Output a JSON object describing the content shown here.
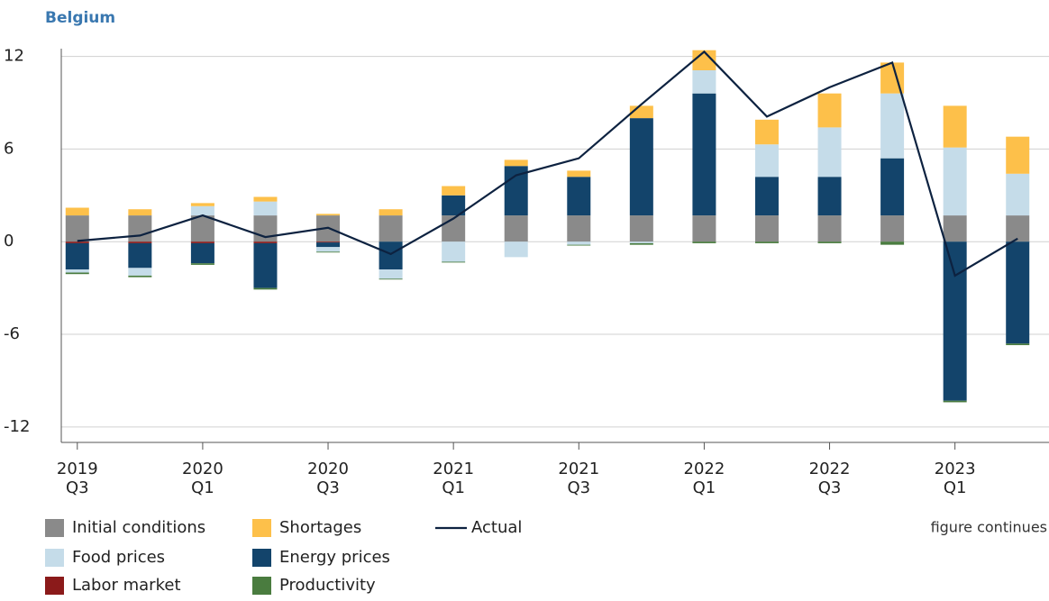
{
  "chart_data": {
    "type": "bar",
    "stacked": true,
    "title": "Belgium",
    "note": "figure continues",
    "categories": [
      "2019 Q3",
      null,
      "2020 Q1",
      null,
      "2020 Q3",
      null,
      "2021 Q1",
      null,
      "2021 Q3",
      null,
      "2022 Q1",
      null,
      "2022 Q3",
      null,
      "2023 Q1",
      null
    ],
    "series": [
      {
        "name": "Initial conditions",
        "color": "#8a8a8a",
        "values": [
          1.7,
          1.7,
          1.7,
          1.7,
          1.7,
          1.7,
          1.7,
          1.7,
          1.7,
          1.7,
          1.7,
          1.7,
          1.7,
          1.7,
          1.7,
          1.7
        ]
      },
      {
        "name": "Labor market",
        "color": "#8b1a1a",
        "values": [
          -0.1,
          -0.1,
          -0.1,
          -0.1,
          -0.05,
          0,
          0,
          0,
          0,
          0,
          0,
          0,
          0,
          0,
          0,
          0
        ]
      },
      {
        "name": "Energy prices",
        "color": "#13446b",
        "values": [
          -1.7,
          -1.6,
          -1.3,
          -2.9,
          -0.3,
          -1.8,
          1.3,
          3.2,
          2.5,
          6.3,
          7.9,
          2.5,
          2.5,
          3.7,
          -10.3,
          -6.6
        ]
      },
      {
        "name": "Food prices",
        "color": "#c5dce9",
        "values": [
          -0.2,
          -0.5,
          0.6,
          0.9,
          -0.3,
          -0.6,
          -1.3,
          -1.0,
          -0.2,
          -0.1,
          1.5,
          2.1,
          3.2,
          4.2,
          4.4,
          2.7
        ]
      },
      {
        "name": "Shortages",
        "color": "#fdc04a",
        "values": [
          0.5,
          0.4,
          0.2,
          0.3,
          0.1,
          0.4,
          0.6,
          0.4,
          0.4,
          0.8,
          1.3,
          1.6,
          2.2,
          2.0,
          2.7,
          2.4
        ]
      },
      {
        "name": "Productivity",
        "color": "#4a7c3f",
        "values": [
          -0.1,
          -0.1,
          -0.1,
          -0.1,
          -0.05,
          -0.05,
          -0.05,
          0,
          -0.05,
          -0.1,
          -0.1,
          -0.1,
          -0.1,
          -0.2,
          -0.1,
          -0.1
        ]
      }
    ],
    "line": {
      "name": "Actual",
      "color": "#0d2240",
      "values": [
        0.05,
        0.4,
        1.7,
        0.3,
        0.9,
        -0.8,
        1.5,
        4.3,
        5.4,
        8.9,
        12.3,
        8.1,
        10.0,
        11.6,
        -2.2,
        0.2
      ]
    },
    "ylim": [
      -13,
      12.5
    ],
    "yticks": [
      12,
      6,
      0,
      -6,
      -12
    ],
    "grid": true
  }
}
